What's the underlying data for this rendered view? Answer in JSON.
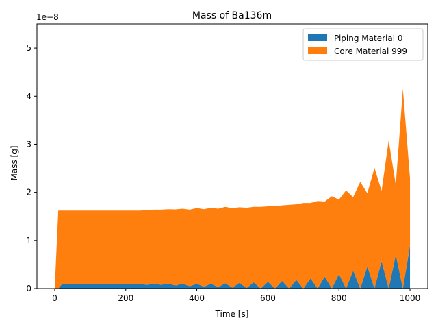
{
  "chart_data": {
    "type": "area",
    "stacked": true,
    "title": "Mass of Ba136m",
    "xlabel": "Time [s]",
    "ylabel": "Mass [g]",
    "y_offset_label": "1e−8",
    "y_scale": 1e-08,
    "xlim": [
      -50,
      1050
    ],
    "ylim": [
      0,
      5.5e-08
    ],
    "xticks": [
      0,
      200,
      400,
      600,
      800,
      1000
    ],
    "yticks": [
      0,
      1e-08,
      2e-08,
      3e-08,
      4e-08,
      5e-08
    ],
    "ytick_labels": [
      "0",
      "1",
      "2",
      "3",
      "4",
      "5"
    ],
    "grid": false,
    "legend_position": "top-right",
    "colors": {
      "series0": "#1f77b4",
      "series1": "#ff7f0e"
    },
    "series": [
      {
        "name": "Piping Material 0",
        "x": [
          0,
          10,
          20,
          40,
          60,
          80,
          100,
          120,
          140,
          160,
          180,
          200,
          220,
          240,
          260,
          280,
          300,
          320,
          340,
          360,
          380,
          400,
          420,
          440,
          460,
          480,
          500,
          520,
          540,
          560,
          580,
          600,
          620,
          640,
          660,
          680,
          700,
          720,
          740,
          760,
          780,
          800,
          820,
          840,
          860,
          880,
          900,
          920,
          940,
          960,
          980,
          1000
        ],
        "values": [
          0,
          0,
          9e-10,
          9e-10,
          9e-10,
          9e-10,
          9e-10,
          9e-10,
          9e-10,
          9e-10,
          9e-10,
          9e-10,
          9e-10,
          9e-10,
          8e-10,
          9.5e-10,
          8e-10,
          1e-09,
          6.5e-10,
          1e-09,
          5e-10,
          1e-09,
          4e-10,
          1e-09,
          3e-10,
          1.1e-09,
          2e-10,
          1.2e-09,
          1e-10,
          1.3e-09,
          0,
          1.4e-09,
          0,
          1.6e-09,
          0,
          1.8e-09,
          0,
          2.1e-09,
          0,
          2.5e-09,
          0,
          3e-09,
          0,
          3.7e-09,
          0,
          4.6e-09,
          0,
          5.7e-09,
          0,
          7e-09,
          0,
          8.9e-09
        ]
      },
      {
        "name": "Core Material 999",
        "x": [
          0,
          10,
          20,
          40,
          60,
          80,
          100,
          120,
          140,
          160,
          180,
          200,
          220,
          240,
          260,
          280,
          300,
          320,
          340,
          360,
          380,
          400,
          420,
          440,
          460,
          480,
          500,
          520,
          540,
          560,
          580,
          600,
          620,
          640,
          660,
          680,
          700,
          720,
          740,
          760,
          780,
          800,
          820,
          840,
          860,
          880,
          900,
          920,
          940,
          960,
          980,
          1000
        ],
        "values": [
          0,
          1.62e-08,
          1.53e-08,
          1.53e-08,
          1.53e-08,
          1.53e-08,
          1.53e-08,
          1.53e-08,
          1.53e-08,
          1.53e-08,
          1.53e-08,
          1.53e-08,
          1.53e-08,
          1.53e-08,
          1.55e-08,
          1.545e-08,
          1.56e-08,
          1.55e-08,
          1.58e-08,
          1.56e-08,
          1.59e-08,
          1.575e-08,
          1.61e-08,
          1.58e-08,
          1.63e-08,
          1.59e-08,
          1.65e-08,
          1.57e-08,
          1.67e-08,
          1.57e-08,
          1.7e-08,
          1.57e-08,
          1.71e-08,
          1.57e-08,
          1.74e-08,
          1.57e-08,
          1.78e-08,
          1.57e-08,
          1.82e-08,
          1.56e-08,
          1.92e-08,
          1.55e-08,
          2.04e-08,
          1.53e-08,
          2.22e-08,
          1.52e-08,
          2.51e-08,
          1.46e-08,
          3.08e-08,
          1.46e-08,
          4.15e-08,
          1.4e-08
        ]
      }
    ]
  }
}
